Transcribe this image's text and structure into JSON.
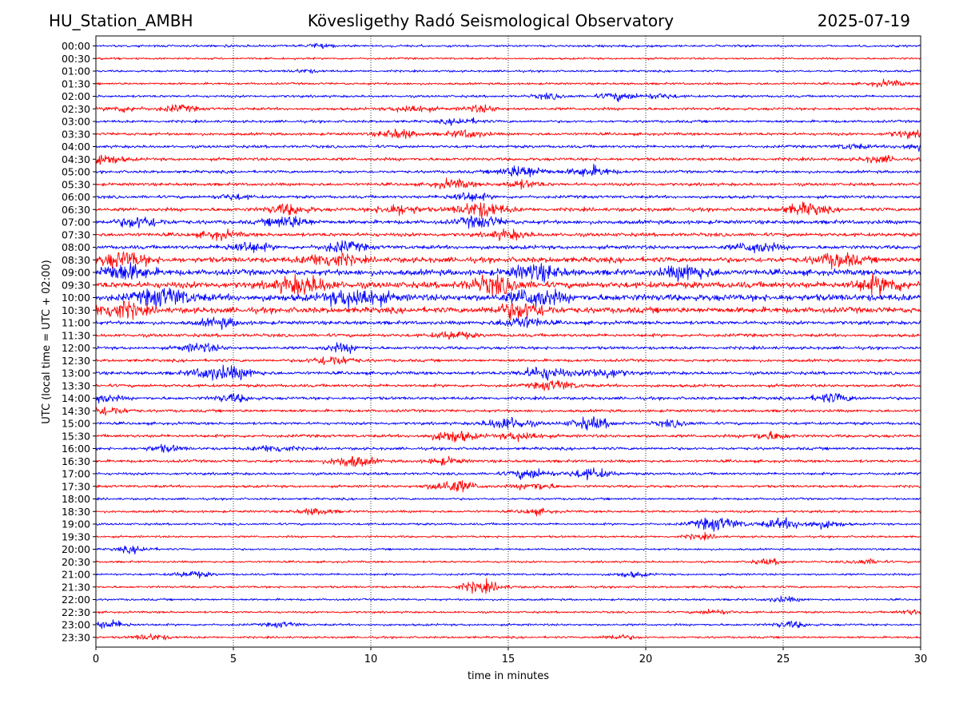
{
  "header": {
    "station": "HU_Station_AMBH",
    "title": "Kövesligethy Radó Seismological Observatory",
    "date": "2025-07-19"
  },
  "chart_data": {
    "type": "line",
    "title": "Kövesligethy Radó Seismological Observatory",
    "xlabel": "time in minutes",
    "ylabel": "UTC (local time = UTC + 02:00)",
    "xlim": [
      0,
      30
    ],
    "x_ticks": [
      "0",
      "5",
      "10",
      "15",
      "20",
      "25",
      "30"
    ],
    "x_gridlines": [
      5,
      10,
      15,
      20,
      25
    ],
    "grid": "vertical dotted",
    "trace_colors": [
      "#0000ff",
      "#ff0000"
    ],
    "rows": [
      {
        "label": "00:00",
        "level": 0.15,
        "bursts": [
          [
            8,
            0.3
          ]
        ]
      },
      {
        "label": "00:30",
        "level": 0.1,
        "bursts": []
      },
      {
        "label": "01:00",
        "level": 0.12,
        "bursts": [
          [
            7.6,
            0.25
          ]
        ]
      },
      {
        "label": "01:30",
        "level": 0.15,
        "bursts": [
          [
            28.8,
            0.5
          ]
        ]
      },
      {
        "label": "02:00",
        "level": 0.2,
        "bursts": [
          [
            16.5,
            0.4
          ],
          [
            19,
            0.6
          ],
          [
            20.5,
            0.4
          ]
        ]
      },
      {
        "label": "02:30",
        "level": 0.3,
        "bursts": [
          [
            1,
            0.4
          ],
          [
            3,
            0.5
          ],
          [
            11.5,
            0.6
          ],
          [
            14,
            0.5
          ]
        ]
      },
      {
        "label": "03:00",
        "level": 0.25,
        "bursts": [
          [
            13.3,
            0.5
          ]
        ]
      },
      {
        "label": "03:30",
        "level": 0.3,
        "bursts": [
          [
            11,
            0.7
          ],
          [
            13.5,
            0.6
          ],
          [
            29.5,
            0.5
          ]
        ]
      },
      {
        "label": "04:00",
        "level": 0.3,
        "bursts": [
          [
            27.5,
            0.4
          ],
          [
            29.8,
            0.5
          ]
        ]
      },
      {
        "label": "04:30",
        "level": 0.35,
        "bursts": [
          [
            0.2,
            0.8
          ],
          [
            28.5,
            0.5
          ]
        ]
      },
      {
        "label": "05:00",
        "level": 0.3,
        "bursts": [
          [
            15.5,
            1.0
          ],
          [
            18,
            0.8
          ]
        ]
      },
      {
        "label": "05:30",
        "level": 0.35,
        "bursts": [
          [
            13,
            0.7
          ],
          [
            15.5,
            0.6
          ]
        ]
      },
      {
        "label": "06:00",
        "level": 0.35,
        "bursts": [
          [
            5,
            0.4
          ],
          [
            13.5,
            0.7
          ]
        ]
      },
      {
        "label": "06:30",
        "level": 0.5,
        "bursts": [
          [
            7,
            0.8
          ],
          [
            11,
            0.8
          ],
          [
            14,
            1.2
          ],
          [
            25.8,
            0.9
          ]
        ]
      },
      {
        "label": "07:00",
        "level": 0.55,
        "bursts": [
          [
            1.6,
            0.9
          ],
          [
            7,
            0.9
          ],
          [
            14,
            0.9
          ]
        ]
      },
      {
        "label": "07:30",
        "level": 0.5,
        "bursts": [
          [
            4.5,
            0.6
          ],
          [
            15,
            0.7
          ]
        ]
      },
      {
        "label": "08:00",
        "level": 0.55,
        "bursts": [
          [
            5.5,
            0.8
          ],
          [
            9,
            0.8
          ],
          [
            24,
            0.8
          ]
        ]
      },
      {
        "label": "08:30",
        "level": 0.9,
        "bursts": [
          [
            1,
            1.2
          ],
          [
            8.5,
            1.1
          ],
          [
            27,
            1.0
          ]
        ]
      },
      {
        "label": "09:00",
        "level": 1.0,
        "bursts": [
          [
            1,
            1.3
          ],
          [
            16,
            1.2
          ],
          [
            21.5,
            1.1
          ]
        ]
      },
      {
        "label": "09:30",
        "level": 1.1,
        "bursts": [
          [
            7.5,
            1.4
          ],
          [
            14.5,
            1.3
          ],
          [
            28.5,
            1.2
          ]
        ]
      },
      {
        "label": "10:00",
        "level": 1.2,
        "bursts": [
          [
            2.5,
            1.4
          ],
          [
            9.5,
            1.5
          ],
          [
            16,
            1.3
          ]
        ]
      },
      {
        "label": "10:30",
        "level": 1.0,
        "bursts": [
          [
            0.8,
            1.3
          ],
          [
            15.5,
            1.3
          ]
        ]
      },
      {
        "label": "11:00",
        "level": 0.5,
        "bursts": [
          [
            4.5,
            0.7
          ],
          [
            15.5,
            0.9
          ]
        ]
      },
      {
        "label": "11:30",
        "level": 0.4,
        "bursts": [
          [
            13,
            0.6
          ]
        ]
      },
      {
        "label": "12:00",
        "level": 0.35,
        "bursts": [
          [
            3.8,
            0.7
          ],
          [
            9,
            0.6
          ]
        ]
      },
      {
        "label": "12:30",
        "level": 0.3,
        "bursts": [
          [
            8.6,
            0.8
          ]
        ]
      },
      {
        "label": "13:00",
        "level": 0.4,
        "bursts": [
          [
            4.2,
            0.9
          ],
          [
            5.2,
            0.7
          ],
          [
            16.3,
            1.0
          ],
          [
            18.5,
            0.8
          ]
        ]
      },
      {
        "label": "13:30",
        "level": 0.35,
        "bursts": [
          [
            16.7,
            0.8
          ]
        ]
      },
      {
        "label": "14:00",
        "level": 0.35,
        "bursts": [
          [
            0.1,
            0.7
          ],
          [
            5,
            0.6
          ],
          [
            26.8,
            0.7
          ]
        ]
      },
      {
        "label": "14:30",
        "level": 0.3,
        "bursts": [
          [
            0.4,
            0.7
          ]
        ]
      },
      {
        "label": "15:00",
        "level": 0.3,
        "bursts": [
          [
            15,
            1.0
          ],
          [
            18,
            0.9
          ],
          [
            21,
            0.5
          ]
        ]
      },
      {
        "label": "15:30",
        "level": 0.35,
        "bursts": [
          [
            13,
            0.9
          ],
          [
            15.5,
            0.7
          ],
          [
            24.5,
            0.6
          ]
        ]
      },
      {
        "label": "16:00",
        "level": 0.3,
        "bursts": [
          [
            2.5,
            0.5
          ],
          [
            6.5,
            0.6
          ]
        ]
      },
      {
        "label": "16:30",
        "level": 0.3,
        "bursts": [
          [
            9.3,
            0.9
          ],
          [
            12.7,
            0.5
          ]
        ]
      },
      {
        "label": "17:00",
        "level": 0.25,
        "bursts": [
          [
            15.8,
            0.8
          ],
          [
            18,
            0.8
          ]
        ]
      },
      {
        "label": "17:30",
        "level": 0.25,
        "bursts": [
          [
            13,
            1.0
          ],
          [
            16,
            0.6
          ]
        ]
      },
      {
        "label": "18:00",
        "level": 0.15,
        "bursts": []
      },
      {
        "label": "18:30",
        "level": 0.2,
        "bursts": [
          [
            8,
            0.5
          ],
          [
            16,
            0.4
          ]
        ]
      },
      {
        "label": "19:00",
        "level": 0.15,
        "bursts": [
          [
            22.6,
            1.1
          ],
          [
            25,
            0.8
          ],
          [
            26.5,
            0.6
          ]
        ]
      },
      {
        "label": "19:30",
        "level": 0.12,
        "bursts": [
          [
            22,
            0.4
          ]
        ]
      },
      {
        "label": "20:00",
        "level": 0.1,
        "bursts": [
          [
            1.4,
            0.5
          ]
        ]
      },
      {
        "label": "20:30",
        "level": 0.12,
        "bursts": [
          [
            24.5,
            0.4
          ],
          [
            28,
            0.4
          ]
        ]
      },
      {
        "label": "21:00",
        "level": 0.12,
        "bursts": [
          [
            3.5,
            0.5
          ],
          [
            19.5,
            0.4
          ]
        ]
      },
      {
        "label": "21:30",
        "level": 0.15,
        "bursts": [
          [
            14,
            0.9
          ]
        ]
      },
      {
        "label": "22:00",
        "level": 0.12,
        "bursts": [
          [
            25,
            0.4
          ]
        ]
      },
      {
        "label": "22:30",
        "level": 0.12,
        "bursts": [
          [
            22.5,
            0.4
          ],
          [
            29.8,
            0.4
          ]
        ]
      },
      {
        "label": "23:00",
        "level": 0.15,
        "bursts": [
          [
            0.5,
            0.6
          ],
          [
            6.8,
            0.4
          ],
          [
            25.3,
            0.5
          ]
        ]
      },
      {
        "label": "23:30",
        "level": 0.12,
        "bursts": [
          [
            2,
            0.5
          ],
          [
            19,
            0.4
          ]
        ]
      }
    ]
  }
}
